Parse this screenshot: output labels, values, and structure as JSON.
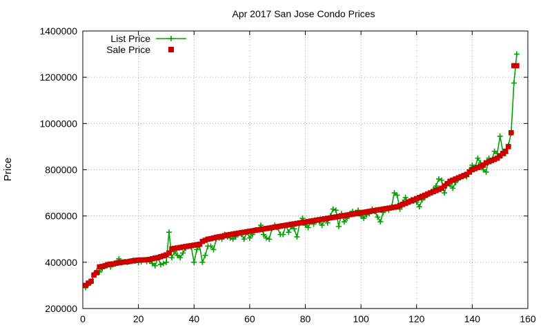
{
  "chart_data": {
    "type": "line",
    "title": "Apr 2017 San Jose Condo Prices",
    "xlabel": "",
    "ylabel": "Price",
    "xlim": [
      0,
      160
    ],
    "ylim": [
      200000,
      1400000
    ],
    "x_ticks": [
      "0",
      "20",
      "40",
      "60",
      "80",
      "100",
      "120",
      "140",
      "160"
    ],
    "y_ticks": [
      "200000",
      "400000",
      "600000",
      "800000",
      "1000000",
      "1200000",
      "1400000"
    ],
    "grid": true,
    "legend_position": "top-left",
    "series": [
      {
        "name": "List Price",
        "style": "line+plus",
        "color": "#00a000",
        "values": [
          290000,
          305000,
          315000,
          348000,
          362000,
          358000,
          372000,
          385000,
          390000,
          380000,
          392000,
          398000,
          415000,
          398000,
          402000,
          400000,
          405000,
          408000,
          406000,
          400000,
          402000,
          410000,
          403000,
          405000,
          395000,
          385000,
          420000,
          390000,
          395000,
          400000,
          530000,
          420000,
          445000,
          430000,
          420000,
          440000,
          460000,
          470000,
          465000,
          400000,
          455000,
          470000,
          400000,
          430000,
          470000,
          470000,
          455000,
          500000,
          505000,
          500000,
          520000,
          510000,
          505000,
          500000,
          510000,
          525000,
          520000,
          500000,
          530000,
          505000,
          520000,
          540000,
          540000,
          560000,
          520000,
          505000,
          500000,
          545000,
          560000,
          550000,
          520000,
          520000,
          560000,
          530000,
          555000,
          545000,
          510000,
          570000,
          590000,
          560000,
          550000,
          575000,
          565000,
          580000,
          575000,
          560000,
          585000,
          570000,
          600000,
          630000,
          625000,
          555000,
          610000,
          575000,
          590000,
          610000,
          620000,
          615000,
          625000,
          600000,
          590000,
          605000,
          610000,
          630000,
          620000,
          595000,
          575000,
          615000,
          630000,
          625000,
          640000,
          700000,
          690000,
          630000,
          660000,
          680000,
          660000,
          670000,
          665000,
          660000,
          640000,
          670000,
          680000,
          690000,
          700000,
          715000,
          730000,
          760000,
          755000,
          700000,
          740000,
          735000,
          720000,
          745000,
          760000,
          770000,
          775000,
          770000,
          800000,
          820000,
          810000,
          850000,
          830000,
          800000,
          790000,
          850000,
          840000,
          880000,
          870000,
          945000,
          880000,
          870000,
          905000,
          960000,
          1175000,
          1300000
        ]
      },
      {
        "name": "Sale Price",
        "style": "square",
        "color": "#cc0000",
        "values": [
          300000,
          310000,
          318000,
          345000,
          355000,
          380000,
          382000,
          385000,
          390000,
          392000,
          393000,
          396000,
          398000,
          400000,
          401000,
          402000,
          404000,
          406000,
          408000,
          409000,
          410000,
          410000,
          411000,
          412000,
          415000,
          418000,
          420000,
          424000,
          428000,
          432000,
          440000,
          458000,
          460000,
          462000,
          464000,
          466000,
          468000,
          470000,
          472000,
          474000,
          476000,
          478000,
          490000,
          495000,
          500000,
          502000,
          505000,
          508000,
          510000,
          512000,
          515000,
          518000,
          520000,
          522000,
          524000,
          526000,
          528000,
          530000,
          532000,
          534000,
          536000,
          538000,
          540000,
          542000,
          544000,
          546000,
          548000,
          550000,
          552000,
          554000,
          556000,
          558000,
          560000,
          562000,
          564000,
          566000,
          568000,
          570000,
          572000,
          574000,
          576000,
          578000,
          580000,
          582000,
          584000,
          586000,
          588000,
          590000,
          592000,
          594000,
          596000,
          598000,
          600000,
          602000,
          604000,
          606000,
          608000,
          610000,
          612000,
          614000,
          616000,
          618000,
          620000,
          622000,
          624000,
          626000,
          628000,
          630000,
          632000,
          634000,
          636000,
          638000,
          640000,
          645000,
          650000,
          655000,
          660000,
          665000,
          670000,
          675000,
          680000,
          685000,
          690000,
          695000,
          700000,
          705000,
          710000,
          715000,
          720000,
          730000,
          740000,
          750000,
          755000,
          760000,
          765000,
          770000,
          775000,
          780000,
          790000,
          800000,
          805000,
          810000,
          815000,
          820000,
          830000,
          835000,
          840000,
          845000,
          850000,
          860000,
          870000,
          880000,
          900000,
          960000,
          1250000,
          1250000
        ]
      }
    ]
  }
}
